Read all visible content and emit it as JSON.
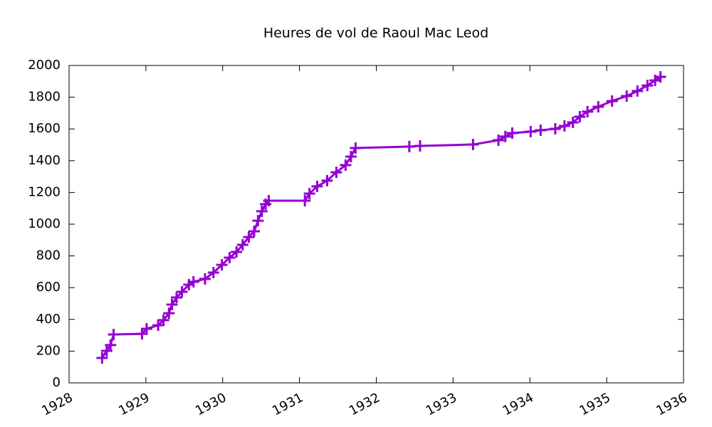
{
  "chart_data": {
    "type": "line",
    "title": "Heures de vol de Raoul Mac Leod",
    "color": "#9400d3",
    "x": [
      1928.43,
      1928.49,
      1928.54,
      1928.58,
      1928.95,
      1929.01,
      1929.16,
      1929.23,
      1929.3,
      1929.34,
      1929.4,
      1929.47,
      1929.56,
      1929.62,
      1929.77,
      1929.88,
      1929.99,
      1930.09,
      1930.18,
      1930.26,
      1930.34,
      1930.41,
      1930.46,
      1930.51,
      1930.56,
      1930.6,
      1931.07,
      1931.13,
      1931.23,
      1931.36,
      1931.48,
      1931.6,
      1931.67,
      1931.73,
      1932.43,
      1932.57,
      1933.26,
      1933.59,
      1933.68,
      1933.77,
      1934.01,
      1934.14,
      1934.33,
      1934.45,
      1934.56,
      1934.65,
      1934.75,
      1934.89,
      1935.07,
      1935.26,
      1935.4,
      1935.53,
      1935.63,
      1935.7
    ],
    "values": [
      157,
      202,
      238,
      305,
      309,
      341,
      363,
      395,
      439,
      493,
      538,
      574,
      619,
      637,
      655,
      695,
      744,
      789,
      825,
      870,
      919,
      955,
      1022,
      1081,
      1126,
      1148,
      1148,
      1193,
      1238,
      1274,
      1327,
      1372,
      1426,
      1480,
      1489,
      1493,
      1502,
      1529,
      1552,
      1574,
      1583,
      1592,
      1601,
      1619,
      1641,
      1677,
      1709,
      1740,
      1776,
      1807,
      1839,
      1874,
      1906,
      1928
    ],
    "xlim": [
      1928,
      1936
    ],
    "xticks": [
      1928,
      1929,
      1930,
      1931,
      1932,
      1933,
      1934,
      1935,
      1936
    ],
    "ylim": [
      0,
      2000
    ],
    "yticks": [
      0,
      200,
      400,
      600,
      800,
      1000,
      1200,
      1400,
      1600,
      1800,
      2000
    ]
  }
}
